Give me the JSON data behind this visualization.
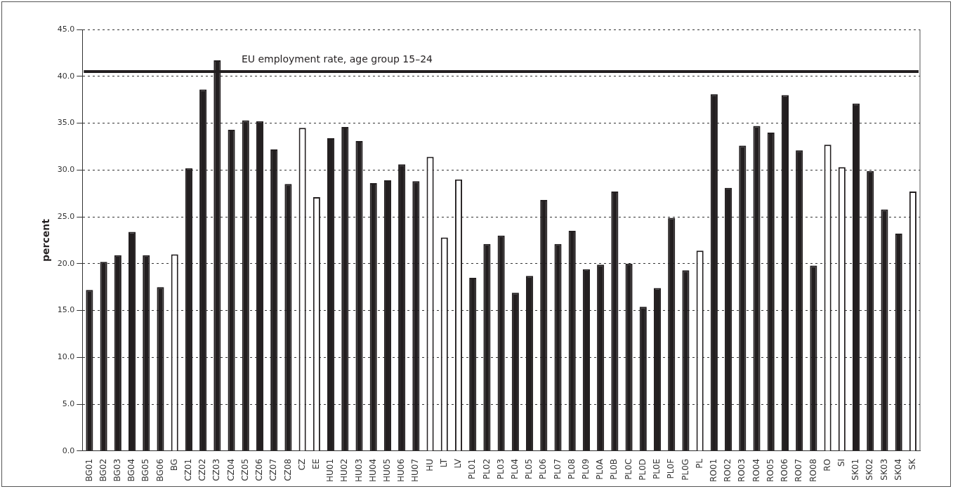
{
  "chart_data": {
    "type": "bar",
    "ylabel": "percent",
    "categories": [
      "BG01",
      "BG02",
      "BG03",
      "BG04",
      "BG05",
      "BG06",
      "BG",
      "CZ01",
      "CZ02",
      "CZ03",
      "CZ04",
      "CZ05",
      "CZ06",
      "CZ07",
      "CZ08",
      "CZ",
      "EE",
      "HU01",
      "HU02",
      "HU03",
      "HU04",
      "HU05",
      "HU06",
      "HU07",
      "HU",
      "LT",
      "LV",
      "PL01",
      "PL02",
      "PL03",
      "PL04",
      "PL05",
      "PL06",
      "PL07",
      "PL08",
      "PL09",
      "PL0A",
      "PL0B",
      "PL0C",
      "PL0D",
      "PL0E",
      "PL0F",
      "PL0G",
      "PL",
      "RO01",
      "RO02",
      "RO03",
      "RO04",
      "RO05",
      "RO06",
      "RO07",
      "RO08",
      "RO",
      "SI",
      "SK01",
      "SK02",
      "SK03",
      "SK04",
      "SK"
    ],
    "values": [
      17.2,
      20.2,
      20.9,
      23.4,
      20.9,
      17.5,
      21.0,
      30.2,
      38.6,
      41.7,
      34.3,
      35.3,
      35.2,
      32.2,
      28.5,
      34.5,
      27.1,
      33.4,
      34.6,
      33.1,
      28.6,
      28.9,
      30.6,
      28.8,
      31.4,
      22.8,
      29.0,
      18.5,
      22.1,
      23.0,
      16.9,
      18.7,
      26.8,
      22.1,
      23.5,
      19.4,
      19.9,
      27.7,
      20.0,
      15.4,
      17.4,
      24.9,
      19.3,
      21.4,
      38.1,
      28.1,
      32.6,
      34.7,
      34.0,
      38.0,
      32.1,
      19.8,
      32.7,
      30.3,
      37.1,
      29.9,
      25.8,
      23.2,
      27.7
    ],
    "colors": [
      "#231f20",
      "#231f20",
      "#231f20",
      "#231f20",
      "#231f20",
      "#231f20",
      "#ffffff",
      "#231f20",
      "#231f20",
      "#231f20",
      "#231f20",
      "#231f20",
      "#231f20",
      "#231f20",
      "#231f20",
      "#ffffff",
      "#ffffff",
      "#231f20",
      "#231f20",
      "#231f20",
      "#231f20",
      "#231f20",
      "#231f20",
      "#231f20",
      "#ffffff",
      "#ffffff",
      "#ffffff",
      "#231f20",
      "#231f20",
      "#231f20",
      "#231f20",
      "#231f20",
      "#231f20",
      "#231f20",
      "#231f20",
      "#231f20",
      "#231f20",
      "#231f20",
      "#231f20",
      "#231f20",
      "#231f20",
      "#231f20",
      "#231f20",
      "#ffffff",
      "#231f20",
      "#231f20",
      "#231f20",
      "#231f20",
      "#231f20",
      "#231f20",
      "#231f20",
      "#231f20",
      "#ffffff",
      "#ffffff",
      "#231f20",
      "#231f20",
      "#231f20",
      "#231f20",
      "#ffffff"
    ],
    "ylim": [
      0,
      45
    ],
    "yticks": [
      {
        "value": 0,
        "label": "0.0"
      },
      {
        "value": 5,
        "label": "5.0"
      },
      {
        "value": 10,
        "label": "10.0"
      },
      {
        "value": 15,
        "label": "15.0"
      },
      {
        "value": 20,
        "label": "20.0"
      },
      {
        "value": 25,
        "label": "25.0"
      },
      {
        "value": 30,
        "label": "30.0"
      },
      {
        "value": 35,
        "label": "35.0"
      },
      {
        "value": 40,
        "label": "40.0"
      },
      {
        "value": 45,
        "label": "45.0"
      }
    ],
    "grid": "y",
    "legend": false,
    "ref_lines": [
      {
        "axis": "y",
        "value": 40.5,
        "label": "EU employment rate, age group 15–24",
        "color": "#231f20",
        "line_style": "solid"
      }
    ]
  }
}
